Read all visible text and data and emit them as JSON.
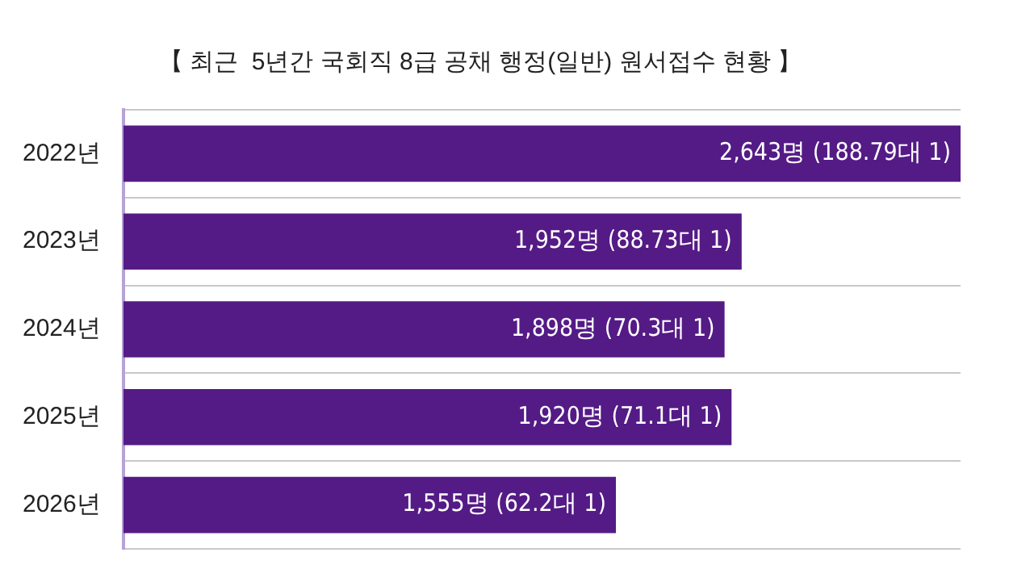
{
  "chart_data": {
    "type": "bar",
    "orientation": "horizontal",
    "title": "【 최근  5년간 국회직 8급 공채 행정(일반) 원서접수 현황 】",
    "categories": [
      "2022년",
      "2023년",
      "2024년",
      "2025년",
      "2026년"
    ],
    "values": [
      2643,
      1952,
      1898,
      1920,
      1555
    ],
    "value_labels": [
      "2,643명 (188.79대 1)",
      "1,952명 (88.73대 1)",
      "1,898명 (70.3대 1)",
      "1,920명 (71.1대 1)",
      "1,555명 (62.2대 1)"
    ],
    "color": "#541b86",
    "grid": "y",
    "legend": false
  }
}
